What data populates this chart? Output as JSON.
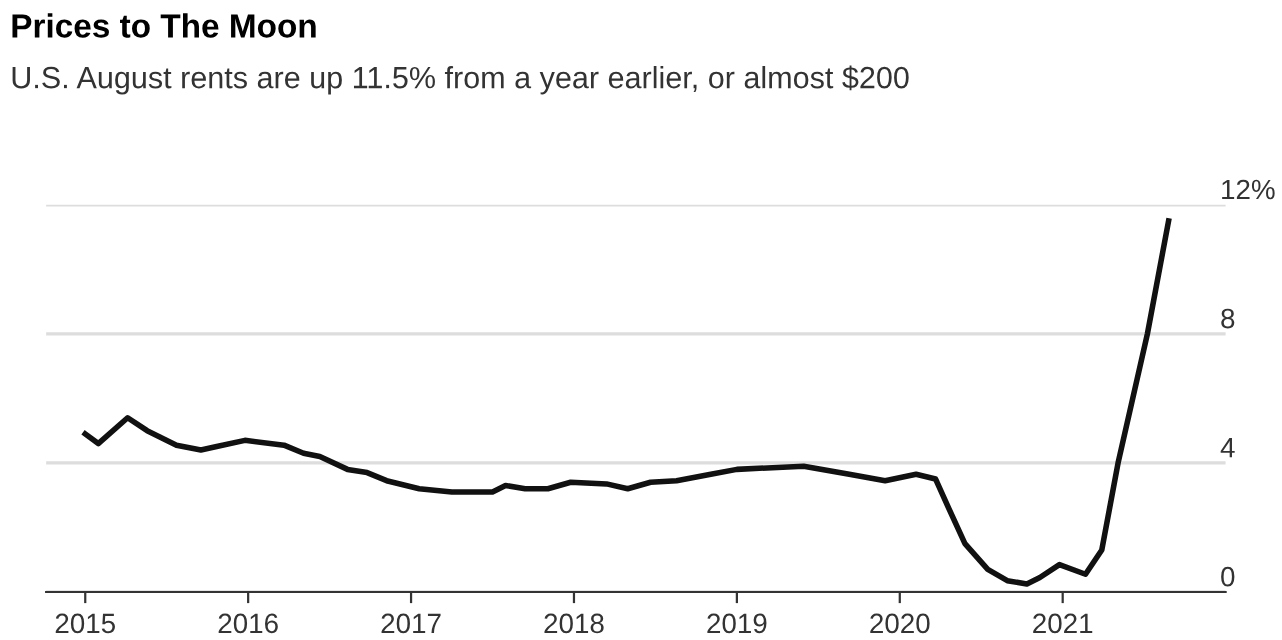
{
  "chart_data": {
    "type": "line",
    "title": "Prices to The Moon",
    "subtitle": "U.S. August rents are up 11.5% from a year earlier, or almost $200",
    "x": [
      2015.0,
      2015.08,
      2015.26,
      2015.38,
      2015.56,
      2015.71,
      2015.8,
      2015.98,
      2016.22,
      2016.34,
      2016.44,
      2016.61,
      2016.73,
      2016.85,
      2017.05,
      2017.25,
      2017.5,
      2017.58,
      2017.7,
      2017.84,
      2017.98,
      2018.2,
      2018.33,
      2018.47,
      2018.63,
      2018.84,
      2019.0,
      2019.41,
      2019.69,
      2019.91,
      2020.1,
      2020.22,
      2020.3,
      2020.4,
      2020.54,
      2020.66,
      2020.78,
      2020.86,
      2020.98,
      2021.14,
      2021.24,
      2021.34,
      2021.52,
      2021.65
    ],
    "series": [
      {
        "color": "#111111",
        "values": [
          4.9,
          4.6,
          5.4,
          5.0,
          4.55,
          4.4,
          4.5,
          4.7,
          4.55,
          4.3,
          4.2,
          3.8,
          3.7,
          3.45,
          3.2,
          3.1,
          3.1,
          3.3,
          3.2,
          3.2,
          3.4,
          3.35,
          3.2,
          3.4,
          3.45,
          3.65,
          3.8,
          3.9,
          3.65,
          3.45,
          3.65,
          3.5,
          2.6,
          1.5,
          0.7,
          0.35,
          0.25,
          0.45,
          0.85,
          0.55,
          1.3,
          4.0,
          8.0,
          11.5
        ]
      }
    ],
    "xlim": [
      2014.76,
      2022.0
    ],
    "xticks": [
      2015,
      2016,
      2017,
      2018,
      2019,
      2020,
      2021
    ],
    "ylim": [
      0,
      12
    ],
    "yticks": [
      {
        "value": 0,
        "label": "0"
      },
      {
        "value": 4,
        "label": "4"
      },
      {
        "value": 8,
        "label": "8"
      },
      {
        "value": 12,
        "label": "12%"
      }
    ],
    "grid": "y",
    "legend": false,
    "marker": "none",
    "line_style": "solid"
  }
}
